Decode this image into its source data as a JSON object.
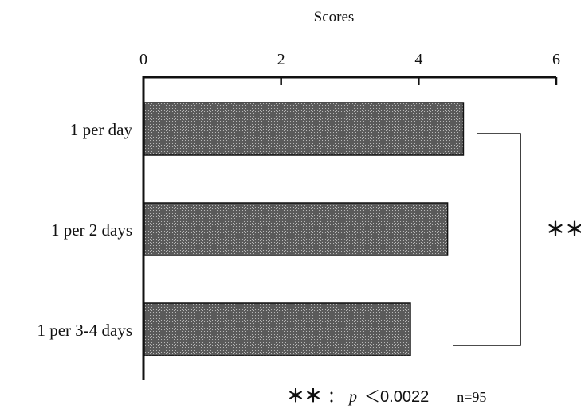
{
  "chart_data": {
    "type": "bar",
    "orientation": "horizontal",
    "title": "",
    "xlabel": "Scores",
    "ylabel": "",
    "xlim": [
      0,
      6
    ],
    "xticks": [
      "0",
      "2",
      "4",
      "6"
    ],
    "axis_position": "top",
    "grid": false,
    "categories": [
      "1 per day",
      "1 per 2 days",
      "1 per 3-4 days"
    ],
    "values": [
      4.65,
      4.42,
      3.88
    ],
    "bar_color": "#4a4a4a",
    "significance": {
      "bracket_from": "1 per day",
      "bracket_to": "1 per 3-4 days",
      "mark": "＊＊"
    },
    "footnote": {
      "mark": "＊＊",
      "colon": "：",
      "p_symbol": "p",
      "p_text": "＜0.0022",
      "n_text": "n=95"
    }
  }
}
